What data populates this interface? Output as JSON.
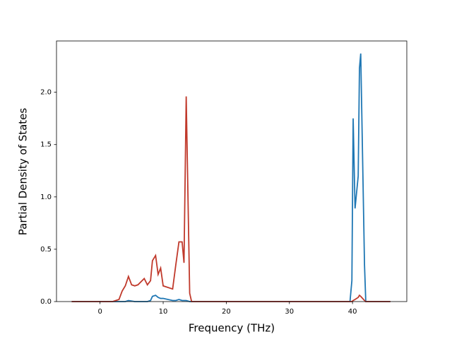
{
  "chart_data": {
    "type": "line",
    "xlabel": "Frequency (THz)",
    "ylabel": "Partial Density of States",
    "x": [
      -4.5,
      2,
      3,
      3.5,
      4,
      4.5,
      5,
      5.5,
      6,
      7,
      7.5,
      8,
      8.3,
      8.8,
      9.2,
      9.6,
      10,
      11.5,
      12,
      12.5,
      13,
      13.3,
      13.65,
      14.2,
      14.5,
      39.6,
      39.9,
      40.1,
      40.4,
      40.9,
      41.1,
      41.3,
      41.9,
      42.1,
      46
    ],
    "series": [
      {
        "color": "#1f77b4",
        "values": [
          0,
          0,
          0,
          0,
          0,
          0.01,
          0.005,
          0,
          0,
          0,
          0,
          0.01,
          0.05,
          0.06,
          0.04,
          0.03,
          0.03,
          0.01,
          0.01,
          0.02,
          0.01,
          0.01,
          0.01,
          0,
          0,
          0,
          0.2,
          1.75,
          0.89,
          1.2,
          2.23,
          2.37,
          0.35,
          0,
          0
        ]
      },
      {
        "color": "#c0392b",
        "values": [
          0,
          0,
          0.02,
          0.1,
          0.15,
          0.24,
          0.16,
          0.15,
          0.16,
          0.22,
          0.16,
          0.2,
          0.39,
          0.44,
          0.26,
          0.32,
          0.15,
          0.12,
          0.35,
          0.57,
          0.57,
          0.37,
          1.96,
          0.08,
          0,
          0,
          0,
          0.01,
          0.02,
          0.04,
          0.06,
          0.05,
          0.01,
          0,
          0
        ]
      }
    ],
    "xlim": [
      -6.9,
      48.6
    ],
    "xticks": [
      0,
      10,
      20,
      30,
      40
    ],
    "ylim": [
      0,
      2.49
    ],
    "yticks": [
      {
        "value": 0,
        "label": "0.0"
      },
      {
        "value": 0.5,
        "label": "0.5"
      },
      {
        "value": 1,
        "label": "1.0"
      },
      {
        "value": 1.5,
        "label": "1.5"
      },
      {
        "value": 2,
        "label": "2.0"
      }
    ],
    "grid": false
  }
}
